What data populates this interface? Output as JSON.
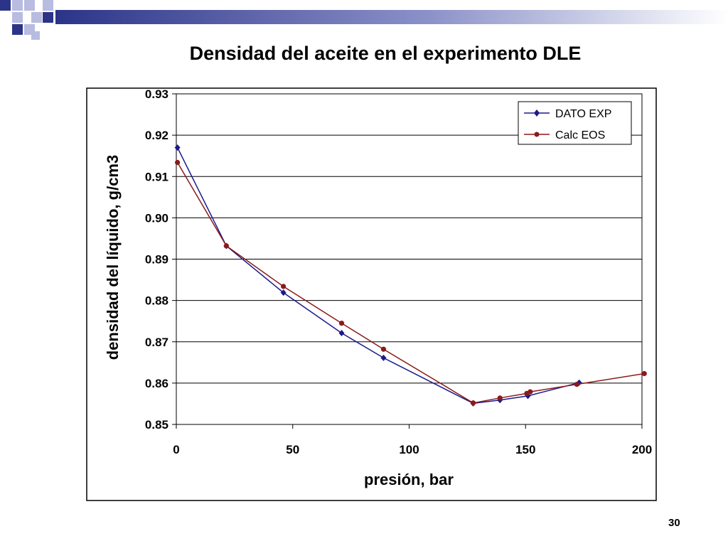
{
  "slide": {
    "title": "Densidad del aceite en el experimento DLE",
    "page_number": "30"
  },
  "colors": {
    "deco_navy": "#2c3488",
    "deco_light": "#b8bce0",
    "series_exp": "#1a1a8c",
    "series_eos": "#8b1a1a"
  },
  "chart_data": {
    "type": "line",
    "title": "Densidad del aceite en el experimento DLE",
    "xlabel": "presión, bar",
    "ylabel": "densidad del líquido, g/cm3",
    "xlim": [
      0,
      200
    ],
    "ylim": [
      0.85,
      0.93
    ],
    "xticks": [
      "0",
      "50",
      "100",
      "150",
      "200"
    ],
    "xtick_values": [
      0,
      50,
      100,
      150,
      200
    ],
    "yticks": [
      "0.85",
      "0.86",
      "0.87",
      "0.88",
      "0.89",
      "0.90",
      "0.91",
      "0.92",
      "0.93"
    ],
    "ytick_values": [
      0.85,
      0.86,
      0.87,
      0.88,
      0.89,
      0.9,
      0.91,
      0.92,
      0.93
    ],
    "grid": "horizontal",
    "legend_position": "top-right",
    "series": [
      {
        "name": "DATO EXP",
        "marker": "diamond",
        "x": [
          0.5,
          21.5,
          46,
          71,
          89,
          127.5,
          139,
          151,
          173
        ],
        "y": [
          0.917,
          0.8932,
          0.8819,
          0.8721,
          0.8661,
          0.8551,
          0.8559,
          0.8569,
          0.8601
        ]
      },
      {
        "name": "Calc EOS",
        "marker": "circle",
        "x": [
          0.5,
          21.5,
          46,
          71,
          89,
          127.5,
          139,
          150.5,
          152,
          172,
          201
        ],
        "y": [
          0.9134,
          0.8932,
          0.8834,
          0.8745,
          0.8682,
          0.8552,
          0.8564,
          0.8575,
          0.8579,
          0.8597,
          0.8623
        ]
      }
    ]
  }
}
